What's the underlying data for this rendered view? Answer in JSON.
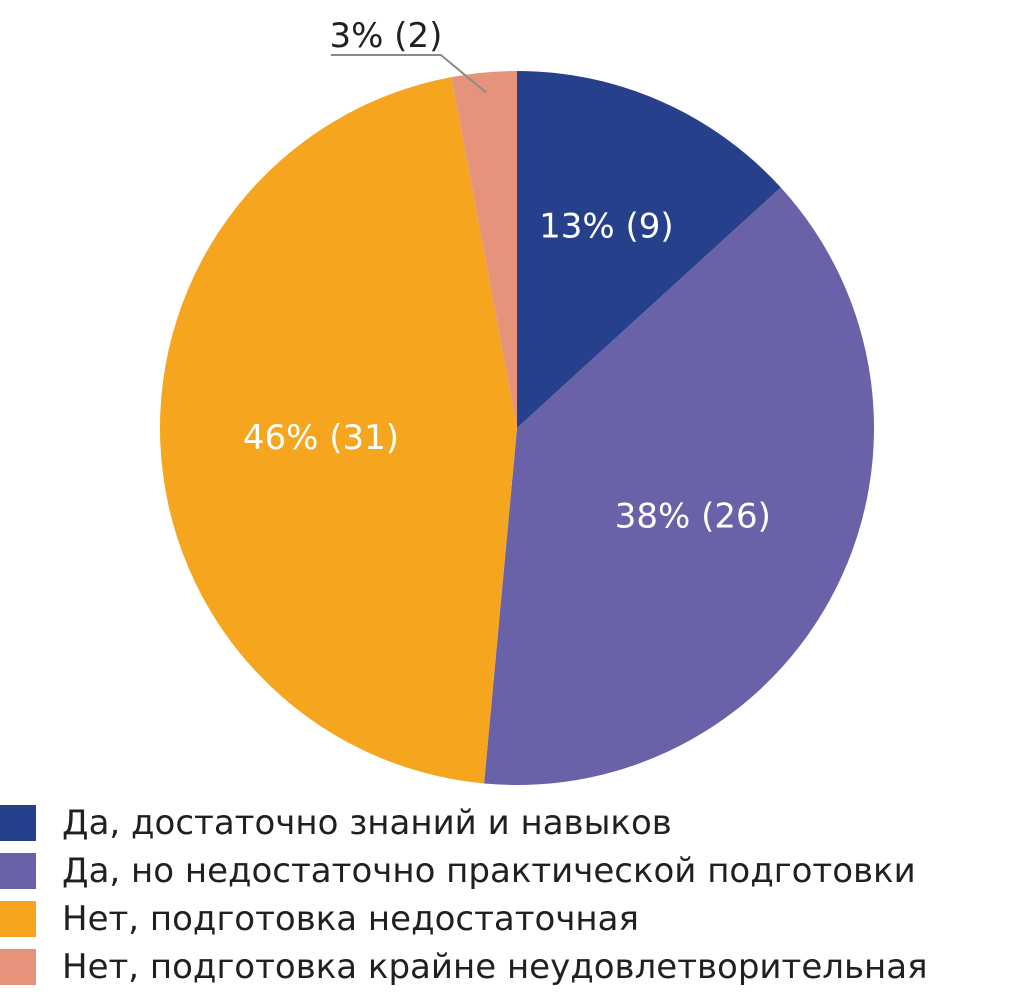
{
  "chart_data": {
    "type": "pie",
    "categories": [
      "Да, достаточно знаний и навыков",
      "Да, но недостаточно практической подготовки",
      "Нет, подготовка недостаточная",
      "Нет, подготовка крайне неудовлетворительная"
    ],
    "values": [
      9,
      26,
      31,
      2
    ],
    "percents": [
      13,
      38,
      46,
      3
    ],
    "data_labels": [
      "13% (9)",
      "38% (26)",
      "46% (31)",
      "3% (2)"
    ],
    "colors": [
      "#27408b",
      "#6962a8",
      "#f6a61e",
      "#e5937a"
    ],
    "start_angle_deg": 0,
    "direction": "clockwise",
    "legend_position": "bottom-left",
    "title": ""
  },
  "legend": {
    "items": [
      {
        "label": "Да, достаточно знаний и навыков",
        "color": "#27408b"
      },
      {
        "label": "Да, но недостаточно практической подготовки",
        "color": "#6962a8"
      },
      {
        "label": "Нет, подготовка недостаточная",
        "color": "#f6a61e"
      },
      {
        "label": "Нет, подготовка крайне неудовлетворительная",
        "color": "#e5937a"
      }
    ]
  }
}
